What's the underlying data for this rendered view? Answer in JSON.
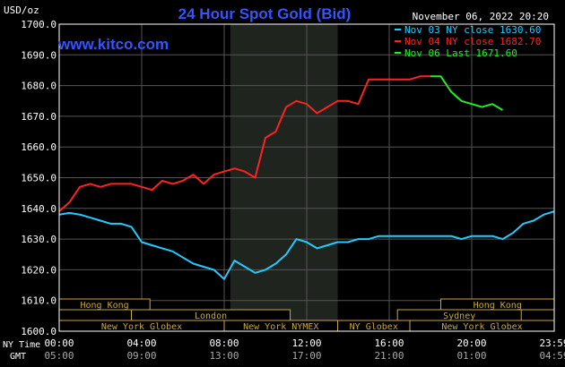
{
  "chart_data": {
    "type": "line",
    "title": "24 Hour Spot Gold (Bid)",
    "watermark": "www.kitco.com",
    "timestamp": "November 06, 2022 20:20",
    "units": "USD/oz",
    "ylim": [
      1600,
      1700
    ],
    "y_ticks": [
      "1700.0",
      "1690.0",
      "1680.0",
      "1670.0",
      "1660.0",
      "1650.0",
      "1640.0",
      "1630.0",
      "1620.0",
      "1610.0",
      "1600.0"
    ],
    "y_tick_values": [
      1700,
      1690,
      1680,
      1670,
      1660,
      1650,
      1640,
      1630,
      1620,
      1610,
      1600
    ],
    "xlim": [
      0,
      24
    ],
    "x_tick_hours": [
      0,
      4,
      8,
      12,
      16,
      20,
      24
    ],
    "x_row_label_ny": "NY Time",
    "x_row_label_gmt": "GMT",
    "x_ticks_ny": [
      "00:00",
      "04:00",
      "08:00",
      "12:00",
      "16:00",
      "20:00",
      "23:59"
    ],
    "x_ticks_gmt": [
      "05:00",
      "09:00",
      "13:00",
      "17:00",
      "21:00",
      "01:00",
      "04:59"
    ],
    "grid": true,
    "legend_position": "top-right",
    "highlight_band": [
      8.3,
      13.5
    ],
    "colors": {
      "series_nov03": "#22ccff",
      "series_nov04": "#ff2222",
      "series_nov06": "#22ee22",
      "title": "#3355ff",
      "watermark": "#3355ff",
      "band_text": "#c8a838",
      "band_border": "#c8a838"
    },
    "sessions": [
      {
        "label": "Hong Kong",
        "start": 0,
        "end": 4.4,
        "row": 0
      },
      {
        "label": "Hong Kong",
        "start": 18.5,
        "end": 24,
        "row": 0
      },
      {
        "label": "London",
        "start": 3.5,
        "end": 11.2,
        "row": 1
      },
      {
        "label": "Sydney",
        "start": 16.4,
        "end": 22.4,
        "row": 1
      },
      {
        "label": "New York Globex",
        "start": 0,
        "end": 8.0,
        "row": 2
      },
      {
        "label": "New York NYMEX",
        "start": 8.0,
        "end": 13.5,
        "row": 2
      },
      {
        "label": "NY Globex",
        "start": 13.5,
        "end": 17.0,
        "row": 2
      },
      {
        "label": "New York Globex",
        "start": 17.0,
        "end": 24,
        "row": 2
      }
    ],
    "series": [
      {
        "name": "Nov 03 NY close 1630.60",
        "color": "#22ccff",
        "x": [
          0,
          0.5,
          1.0,
          1.5,
          2.0,
          2.5,
          3.0,
          3.5,
          4.0,
          4.5,
          5.0,
          5.5,
          6.0,
          6.5,
          7.0,
          7.5,
          8.0,
          8.5,
          9.0,
          9.5,
          10.0,
          10.5,
          11.0,
          11.5,
          12.0,
          12.5,
          13.0,
          13.5,
          14.0,
          14.5,
          15.0,
          15.5,
          16.0,
          16.5,
          17.0,
          17.5,
          18.0,
          18.5,
          19.0,
          19.5,
          20.0,
          20.5,
          21.0,
          21.5,
          22.0,
          22.5,
          23.0,
          23.5,
          24.0
        ],
        "values": [
          1638,
          1638.5,
          1638,
          1637,
          1636,
          1635,
          1635,
          1634,
          1629,
          1628,
          1627,
          1626,
          1624,
          1622,
          1621,
          1620,
          1617,
          1623,
          1621,
          1619,
          1620,
          1622,
          1625,
          1630,
          1629,
          1627,
          1628,
          1629,
          1629,
          1630,
          1630,
          1631,
          1631,
          1631,
          1631,
          1631,
          1631,
          1631,
          1631,
          1630,
          1631,
          1631,
          1631,
          1630,
          1632,
          1635,
          1636,
          1638,
          1639
        ]
      },
      {
        "name": "Nov 04 NY close 1682.70",
        "color": "#ff2222",
        "x": [
          0,
          0.5,
          1.0,
          1.5,
          2.0,
          2.5,
          3.0,
          3.5,
          4.0,
          4.5,
          5.0,
          5.5,
          6.0,
          6.5,
          7.0,
          7.5,
          8.0,
          8.5,
          9.0,
          9.5,
          10.0,
          10.5,
          11.0,
          11.5,
          12.0,
          12.5,
          13.0,
          13.5,
          14.0,
          14.5,
          15.0,
          15.5,
          16.0,
          16.5,
          17.0,
          17.5,
          18.0
        ],
        "values": [
          1639,
          1642,
          1647,
          1648,
          1647,
          1648,
          1648,
          1648,
          1647,
          1646,
          1649,
          1648,
          1649,
          1651,
          1648,
          1651,
          1652,
          1653,
          1652,
          1650,
          1663,
          1665,
          1673,
          1675,
          1674,
          1671,
          1673,
          1675,
          1675,
          1674,
          1682,
          1682,
          1682,
          1682,
          1682,
          1683,
          1683
        ]
      },
      {
        "name": "Nov 06 Last 1671.60",
        "color": "#22ee22",
        "x": [
          18.0,
          18.5,
          19.0,
          19.5,
          20.0,
          20.5,
          21.0,
          21.5
        ],
        "values": [
          1683,
          1683,
          1678,
          1675,
          1674,
          1673,
          1674,
          1672
        ]
      }
    ]
  }
}
